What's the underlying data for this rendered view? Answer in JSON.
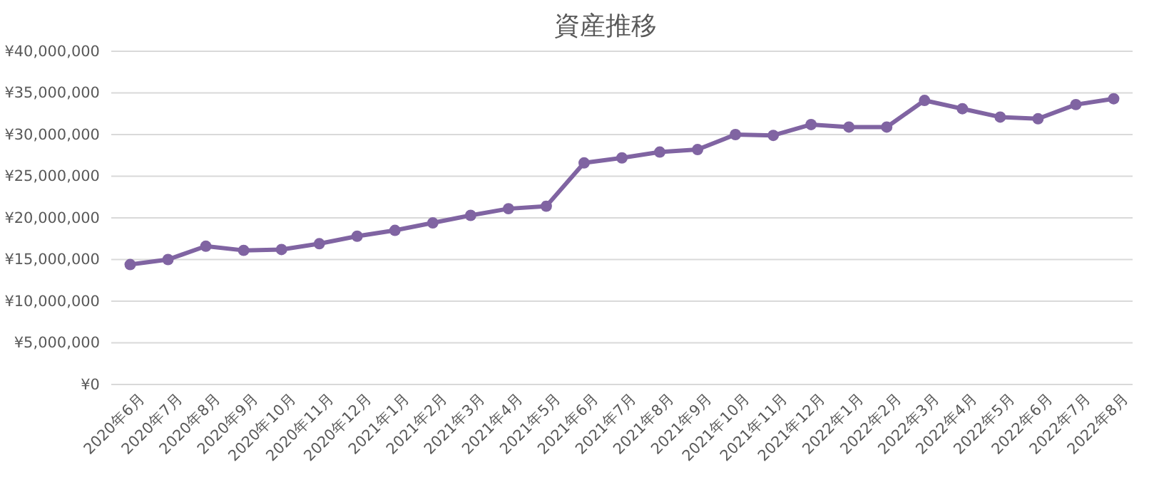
{
  "chart_data": {
    "type": "line",
    "title": "資産推移",
    "categories": [
      "2020年6月",
      "2020年7月",
      "2020年8月",
      "2020年9月",
      "2020年10月",
      "2020年11月",
      "2020年12月",
      "2021年1月",
      "2021年2月",
      "2021年3月",
      "2021年4月",
      "2021年5月",
      "2021年6月",
      "2021年7月",
      "2021年8月",
      "2021年9月",
      "2021年10月",
      "2021年11月",
      "2021年12月",
      "2022年1月",
      "2022年2月",
      "2022年3月",
      "2022年4月",
      "2022年5月",
      "2022年6月",
      "2022年7月",
      "2022年8月"
    ],
    "series": [
      {
        "color": "#8064a2",
        "values": [
          14400000,
          15000000,
          16600000,
          16100000,
          16200000,
          16900000,
          17800000,
          18500000,
          19400000,
          20300000,
          21100000,
          21400000,
          26600000,
          27200000,
          27900000,
          28200000,
          30000000,
          29900000,
          31200000,
          30900000,
          30900000,
          34100000,
          33100000,
          32100000,
          31900000,
          33600000,
          34300000
        ]
      }
    ],
    "ylim": [
      0,
      40000000
    ],
    "yticks": [
      {
        "value": 0,
        "label": "¥0"
      },
      {
        "value": 5000000,
        "label": "¥5,000,000"
      },
      {
        "value": 10000000,
        "label": "¥10,000,000"
      },
      {
        "value": 15000000,
        "label": "¥15,000,000"
      },
      {
        "value": 20000000,
        "label": "¥20,000,000"
      },
      {
        "value": 25000000,
        "label": "¥25,000,000"
      },
      {
        "value": 30000000,
        "label": "¥30,000,000"
      },
      {
        "value": 35000000,
        "label": "¥35,000,000"
      },
      {
        "value": 40000000,
        "label": "¥40,000,000"
      }
    ],
    "grid": "y",
    "marker": "circle",
    "line_style": "solid"
  }
}
